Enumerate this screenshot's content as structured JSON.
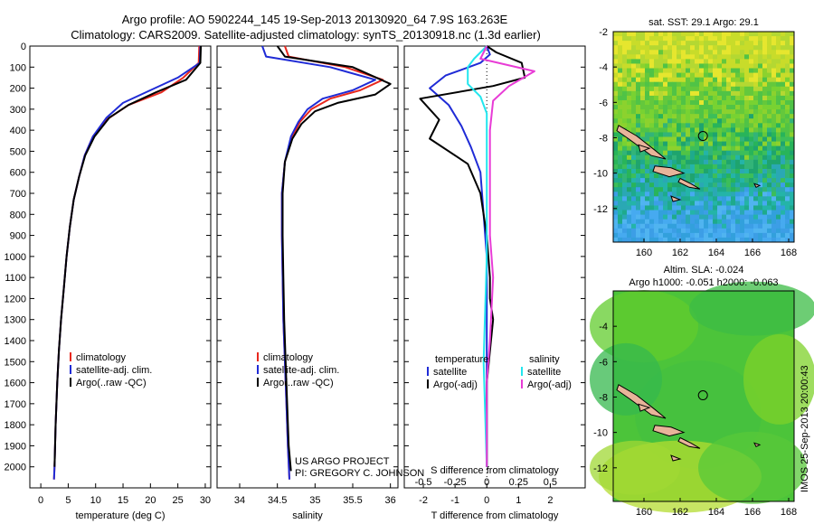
{
  "title_line1": "Argo profile: AO 5902244_145 19-Sep-2013 20130920_64 7.9S 163.263E",
  "title_line2": "Climatology: CARS2009. Satellite-adjusted climatology: synTS_20130918.nc (1.3d earlier)",
  "project": {
    "line1": "US ARGO PROJECT",
    "line2": "PI: GREGORY C. JOHNSON"
  },
  "timestamp": "IMOS 25-Sep-2013 20:00:43",
  "colors": {
    "red": "#e8281e",
    "blue": "#1f2bd6",
    "black": "#000000",
    "cyan": "#22e6ee",
    "magenta": "#e83cd6"
  },
  "chart_data": [
    {
      "id": "temperature",
      "type": "line",
      "xlabel": "temperature (deg C)",
      "ylabel": "",
      "xlim": [
        -2,
        31
      ],
      "ylim": [
        2100,
        0
      ],
      "xticks": [
        0,
        5,
        10,
        15,
        20,
        25,
        30
      ],
      "yticks": [
        0,
        100,
        200,
        300,
        400,
        500,
        600,
        700,
        800,
        900,
        1000,
        1100,
        1200,
        1300,
        1400,
        1500,
        1600,
        1700,
        1800,
        1900,
        2000
      ],
      "legend": [
        "climatology",
        "satellite-adj. clim.",
        "Argo(..raw -QC)"
      ],
      "series": [
        {
          "name": "climatology",
          "color": "red",
          "points": [
            [
              28.9,
              0
            ],
            [
              28.8,
              80
            ],
            [
              26,
              150
            ],
            [
              22,
              220
            ],
            [
              16,
              280
            ],
            [
              12,
              350
            ],
            [
              9.5,
              430
            ],
            [
              8,
              520
            ],
            [
              7,
              620
            ],
            [
              6,
              730
            ],
            [
              5.3,
              860
            ],
            [
              4.7,
              1000
            ],
            [
              4.2,
              1150
            ],
            [
              3.7,
              1300
            ],
            [
              3.3,
              1450
            ],
            [
              3,
              1600
            ],
            [
              2.7,
              1800
            ],
            [
              2.5,
              2000
            ],
            [
              2.4,
              2060
            ]
          ]
        },
        {
          "name": "satellite-adj. clim.",
          "color": "blue",
          "points": [
            [
              29.1,
              0
            ],
            [
              29,
              80
            ],
            [
              25,
              150
            ],
            [
              20,
              210
            ],
            [
              15,
              270
            ],
            [
              12,
              340
            ],
            [
              9.5,
              430
            ],
            [
              8,
              520
            ],
            [
              7,
              620
            ],
            [
              6,
              730
            ],
            [
              5.3,
              860
            ],
            [
              4.7,
              1000
            ],
            [
              4.2,
              1150
            ],
            [
              3.7,
              1300
            ],
            [
              3.3,
              1450
            ],
            [
              3,
              1600
            ],
            [
              2.7,
              1800
            ],
            [
              2.5,
              2000
            ],
            [
              2.4,
              2060
            ]
          ]
        },
        {
          "name": "Argo(..raw -QC)",
          "color": "black",
          "points": [
            [
              29.2,
              0
            ],
            [
              29.1,
              80
            ],
            [
              26.5,
              160
            ],
            [
              21,
              220
            ],
            [
              16,
              280
            ],
            [
              12.5,
              340
            ],
            [
              9.8,
              430
            ],
            [
              8.1,
              520
            ],
            [
              7,
              620
            ],
            [
              6,
              730
            ],
            [
              5.3,
              860
            ],
            [
              4.7,
              1000
            ],
            [
              4.2,
              1150
            ],
            [
              3.7,
              1300
            ],
            [
              3.3,
              1450
            ],
            [
              3,
              1600
            ],
            [
              2.7,
              1800
            ],
            [
              2.5,
              2000
            ]
          ]
        }
      ]
    },
    {
      "id": "salinity",
      "type": "line",
      "xlabel": "salinity",
      "ylabel": "",
      "xlim": [
        33.7,
        36.1
      ],
      "ylim": [
        2100,
        0
      ],
      "xticks": [
        34,
        34.5,
        35,
        35.5,
        36
      ],
      "legend": [
        "climatology",
        "satellite-adj. clim.",
        "Argo(..raw -QC)"
      ],
      "series": [
        {
          "name": "climatology",
          "color": "red",
          "points": [
            [
              34.6,
              0
            ],
            [
              34.65,
              50
            ],
            [
              35.4,
              100
            ],
            [
              35.9,
              160
            ],
            [
              35.6,
              210
            ],
            [
              35.2,
              250
            ],
            [
              34.95,
              300
            ],
            [
              34.8,
              360
            ],
            [
              34.7,
              430
            ],
            [
              34.6,
              550
            ],
            [
              34.56,
              700
            ],
            [
              34.56,
              900
            ],
            [
              34.57,
              1100
            ],
            [
              34.58,
              1300
            ],
            [
              34.6,
              1500
            ],
            [
              34.62,
              1700
            ],
            [
              34.64,
              1900
            ],
            [
              34.66,
              2060
            ]
          ]
        },
        {
          "name": "satellite-adj. clim.",
          "color": "blue",
          "points": [
            [
              34.3,
              0
            ],
            [
              34.35,
              50
            ],
            [
              35.2,
              100
            ],
            [
              35.8,
              160
            ],
            [
              35.5,
              210
            ],
            [
              35.1,
              250
            ],
            [
              34.9,
              300
            ],
            [
              34.78,
              360
            ],
            [
              34.68,
              430
            ],
            [
              34.6,
              550
            ],
            [
              34.56,
              700
            ],
            [
              34.56,
              900
            ],
            [
              34.57,
              1100
            ],
            [
              34.58,
              1300
            ],
            [
              34.6,
              1500
            ],
            [
              34.62,
              1700
            ],
            [
              34.64,
              1900
            ],
            [
              34.66,
              2060
            ]
          ]
        },
        {
          "name": "Argo(..raw -QC)",
          "color": "black",
          "points": [
            [
              34.5,
              0
            ],
            [
              34.6,
              50
            ],
            [
              35.5,
              100
            ],
            [
              36.0,
              180
            ],
            [
              35.8,
              230
            ],
            [
              35.3,
              270
            ],
            [
              35.0,
              310
            ],
            [
              34.82,
              370
            ],
            [
              34.7,
              440
            ],
            [
              34.6,
              550
            ],
            [
              34.57,
              700
            ],
            [
              34.57,
              900
            ],
            [
              34.58,
              1100
            ],
            [
              34.59,
              1300
            ],
            [
              34.61,
              1500
            ],
            [
              34.63,
              1700
            ],
            [
              34.65,
              1900
            ],
            [
              34.68,
              2020
            ]
          ]
        }
      ]
    },
    {
      "id": "difference",
      "type": "line",
      "xlabel": "T difference from climatology",
      "x2label": "S difference from climatology",
      "xlim": [
        -2.6,
        3.1
      ],
      "ylim": [
        2100,
        0
      ],
      "xticks": [
        -2,
        -1,
        0,
        1,
        2
      ],
      "xticklabels2": [
        "-0.5",
        "-0.25",
        "0",
        "0.25",
        "0.5"
      ],
      "xticks2_pos": [
        -2,
        -1,
        0,
        1,
        2
      ],
      "legend_temperature": {
        "title": "temperature",
        "items": [
          "satellite",
          "Argo(-adj)"
        ]
      },
      "legend_salinity": {
        "title": "salinity",
        "items": [
          "satellite",
          "Argo(-adj)"
        ]
      },
      "series": [
        {
          "name": "T satellite",
          "color": "blue",
          "points": [
            [
              0,
              0
            ],
            [
              0.1,
              40
            ],
            [
              -0.2,
              80
            ],
            [
              -1.3,
              140
            ],
            [
              -1.8,
              200
            ],
            [
              -1.2,
              280
            ],
            [
              -0.8,
              380
            ],
            [
              -0.5,
              480
            ],
            [
              -0.2,
              600
            ],
            [
              -0.1,
              800
            ],
            [
              0,
              1000
            ],
            [
              0,
              2000
            ]
          ]
        },
        {
          "name": "T Argo(-adj)",
          "color": "black",
          "points": [
            [
              0,
              0
            ],
            [
              0.3,
              30
            ],
            [
              1.1,
              80
            ],
            [
              1.2,
              150
            ],
            [
              0.2,
              190
            ],
            [
              -2.1,
              250
            ],
            [
              -1.5,
              350
            ],
            [
              -1.8,
              440
            ],
            [
              -0.6,
              560
            ],
            [
              -0.2,
              700
            ],
            [
              0,
              900
            ],
            [
              0.1,
              1100
            ],
            [
              0.1,
              1200
            ],
            [
              0.2,
              1300
            ],
            [
              0.1,
              1450
            ],
            [
              0,
              1600
            ],
            [
              0,
              2000
            ]
          ]
        },
        {
          "name": "S satellite",
          "color": "cyan",
          "points": [
            [
              0,
              0
            ],
            [
              -0.4,
              60
            ],
            [
              -0.6,
              100
            ],
            [
              -0.6,
              180
            ],
            [
              -0.2,
              240
            ],
            [
              0,
              320
            ],
            [
              0,
              600
            ],
            [
              0,
              1000
            ],
            [
              -0.1,
              1500
            ],
            [
              0,
              2000
            ]
          ]
        },
        {
          "name": "S Argo(-adj)",
          "color": "magenta",
          "points": [
            [
              0,
              0
            ],
            [
              -0.2,
              60
            ],
            [
              1.5,
              120
            ],
            [
              0.7,
              190
            ],
            [
              0.2,
              260
            ],
            [
              0.1,
              400
            ],
            [
              0.1,
              600
            ],
            [
              0.1,
              900
            ],
            [
              0.2,
              1100
            ],
            [
              0.1,
              1400
            ],
            [
              0,
              1600
            ],
            [
              0,
              2000
            ]
          ]
        }
      ]
    },
    {
      "id": "sst_map",
      "type": "heatmap",
      "title": "sat. SST: 29.1  Argo: 29.1",
      "xlim": [
        158.3,
        168.3
      ],
      "ylim": [
        -13.9,
        -2
      ],
      "xticks": [
        160,
        162,
        164,
        166,
        168
      ],
      "yticks": [
        -2,
        -4,
        -6,
        -8,
        -10,
        -12
      ],
      "marker": [
        163.26,
        -7.9
      ]
    },
    {
      "id": "sla_map",
      "type": "heatmap",
      "title": "Altim. SLA: -0.024",
      "subtitle": "Argo h1000: -0.051 h2000: -0.063",
      "xlim": [
        158.3,
        168.3
      ],
      "ylim": [
        -13.9,
        -2
      ],
      "xticks": [
        160,
        162,
        164,
        166,
        168
      ],
      "yticks": [
        -4,
        -6,
        -8,
        -10,
        -12
      ],
      "marker": [
        163.26,
        -7.9
      ]
    }
  ]
}
